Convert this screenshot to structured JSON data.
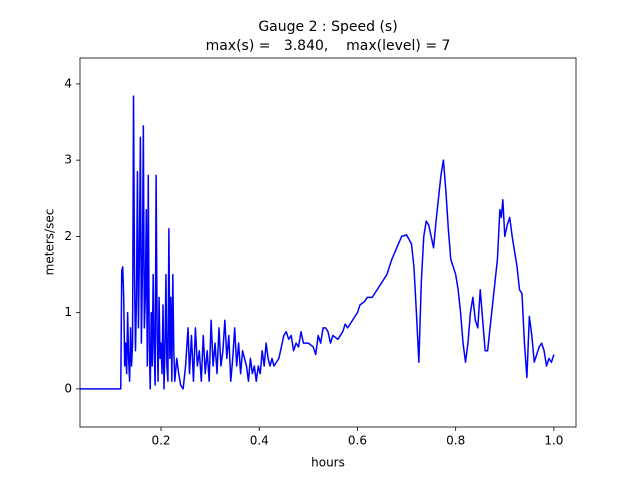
{
  "chart_data": {
    "type": "line",
    "title": "Gauge 2 : Speed (s)",
    "subtitle": "max(s) =   3.840,    max(level) = 7",
    "xlabel": "hours",
    "ylabel": "meters/sec",
    "xlim": [
      0.035,
      1.045
    ],
    "ylim": [
      -0.5,
      4.34
    ],
    "xticks": [
      0.2,
      0.4,
      0.6,
      0.8,
      {
        "value": 1,
        "label": "1.0"
      }
    ],
    "yticks": [
      0,
      1,
      2,
      3,
      4
    ],
    "grid": false,
    "series": [
      {
        "name": "s",
        "color": "#0000ff",
        "x": [
          0.035,
          0.118,
          0.12,
          0.122,
          0.124,
          0.126,
          0.128,
          0.13,
          0.132,
          0.134,
          0.136,
          0.138,
          0.14,
          0.142,
          0.144,
          0.146,
          0.148,
          0.15,
          0.152,
          0.154,
          0.156,
          0.158,
          0.16,
          0.162,
          0.164,
          0.166,
          0.168,
          0.17,
          0.172,
          0.174,
          0.176,
          0.178,
          0.18,
          0.182,
          0.184,
          0.186,
          0.188,
          0.19,
          0.192,
          0.194,
          0.196,
          0.198,
          0.2,
          0.202,
          0.204,
          0.206,
          0.208,
          0.21,
          0.212,
          0.214,
          0.216,
          0.218,
          0.22,
          0.222,
          0.224,
          0.226,
          0.228,
          0.232,
          0.236,
          0.24,
          0.245,
          0.25,
          0.255,
          0.258,
          0.262,
          0.266,
          0.27,
          0.274,
          0.278,
          0.282,
          0.286,
          0.29,
          0.294,
          0.298,
          0.302,
          0.306,
          0.31,
          0.314,
          0.318,
          0.322,
          0.326,
          0.33,
          0.334,
          0.338,
          0.342,
          0.346,
          0.35,
          0.354,
          0.358,
          0.362,
          0.366,
          0.37,
          0.374,
          0.378,
          0.382,
          0.386,
          0.39,
          0.394,
          0.398,
          0.402,
          0.406,
          0.41,
          0.414,
          0.418,
          0.422,
          0.426,
          0.43,
          0.44,
          0.45,
          0.455,
          0.46,
          0.465,
          0.47,
          0.475,
          0.48,
          0.485,
          0.49,
          0.5,
          0.51,
          0.515,
          0.52,
          0.525,
          0.53,
          0.535,
          0.54,
          0.545,
          0.55,
          0.56,
          0.57,
          0.575,
          0.58,
          0.59,
          0.6,
          0.605,
          0.615,
          0.62,
          0.63,
          0.64,
          0.65,
          0.66,
          0.67,
          0.68,
          0.69,
          0.7,
          0.71,
          0.715,
          0.72,
          0.725,
          0.73,
          0.735,
          0.74,
          0.745,
          0.75,
          0.755,
          0.76,
          0.77,
          0.775,
          0.78,
          0.785,
          0.79,
          0.795,
          0.8,
          0.805,
          0.81,
          0.815,
          0.82,
          0.825,
          0.83,
          0.835,
          0.84,
          0.845,
          0.85,
          0.855,
          0.86,
          0.865,
          0.87,
          0.875,
          0.88,
          0.885,
          0.89,
          0.893,
          0.896,
          0.9,
          0.905,
          0.91,
          0.915,
          0.92,
          0.925,
          0.93,
          0.935,
          0.94,
          0.945,
          0.95,
          0.955,
          0.96,
          0.965,
          0.97,
          0.975,
          0.98,
          0.985,
          0.99,
          0.995,
          1.0
        ],
        "values": [
          0,
          0,
          1.55,
          1.6,
          1.2,
          0.3,
          0.6,
          0.2,
          1.0,
          0.4,
          0.1,
          0.8,
          0.3,
          0.6,
          3.84,
          1.5,
          0.5,
          1.2,
          2.85,
          0.8,
          1.8,
          3.3,
          0.6,
          1.5,
          3.45,
          0.8,
          1.2,
          2.35,
          0.3,
          2.8,
          0.6,
          0.0,
          1.0,
          0.3,
          1.5,
          0.5,
          0.05,
          2.8,
          0.8,
          0.1,
          1.2,
          0.4,
          0.6,
          0.2,
          1.1,
          0.0,
          0.5,
          1.5,
          0.3,
          0.1,
          2.1,
          0.4,
          1.2,
          0.1,
          1.5,
          0.5,
          0.1,
          0.4,
          0.2,
          0.05,
          0.0,
          0.3,
          0.8,
          0.2,
          0.7,
          0.1,
          0.8,
          0.3,
          0.5,
          0.1,
          0.7,
          0.2,
          0.5,
          0.1,
          0.9,
          0.3,
          0.6,
          0.2,
          0.8,
          0.3,
          0.5,
          0.9,
          0.4,
          0.7,
          0.1,
          0.4,
          0.8,
          0.3,
          0.6,
          0.2,
          0.5,
          0.4,
          0.3,
          0.1,
          0.4,
          0.2,
          0.3,
          0.1,
          0.3,
          0.2,
          0.5,
          0.3,
          0.6,
          0.4,
          0.3,
          0.4,
          0.3,
          0.4,
          0.7,
          0.75,
          0.65,
          0.7,
          0.5,
          0.6,
          0.55,
          0.75,
          0.6,
          0.6,
          0.55,
          0.45,
          0.7,
          0.6,
          0.8,
          0.8,
          0.75,
          0.6,
          0.7,
          0.65,
          0.75,
          0.85,
          0.8,
          0.9,
          1.0,
          1.1,
          1.15,
          1.2,
          1.2,
          1.3,
          1.4,
          1.5,
          1.7,
          1.85,
          2.0,
          2.02,
          1.9,
          1.6,
          1.0,
          0.35,
          1.4,
          2.0,
          2.2,
          2.15,
          2.0,
          1.85,
          2.2,
          2.8,
          3.0,
          2.6,
          2.1,
          1.7,
          1.6,
          1.5,
          1.3,
          1.0,
          0.6,
          0.35,
          0.6,
          1.0,
          1.2,
          0.9,
          0.8,
          1.3,
          0.9,
          0.5,
          0.5,
          0.8,
          1.1,
          1.4,
          1.7,
          2.35,
          2.25,
          2.48,
          2.0,
          2.15,
          2.25,
          2.0,
          1.8,
          1.6,
          1.3,
          1.25,
          0.6,
          0.15,
          0.95,
          0.7,
          0.35,
          0.45,
          0.55,
          0.6,
          0.5,
          0.3,
          0.4,
          0.35,
          0.45
        ]
      }
    ]
  }
}
